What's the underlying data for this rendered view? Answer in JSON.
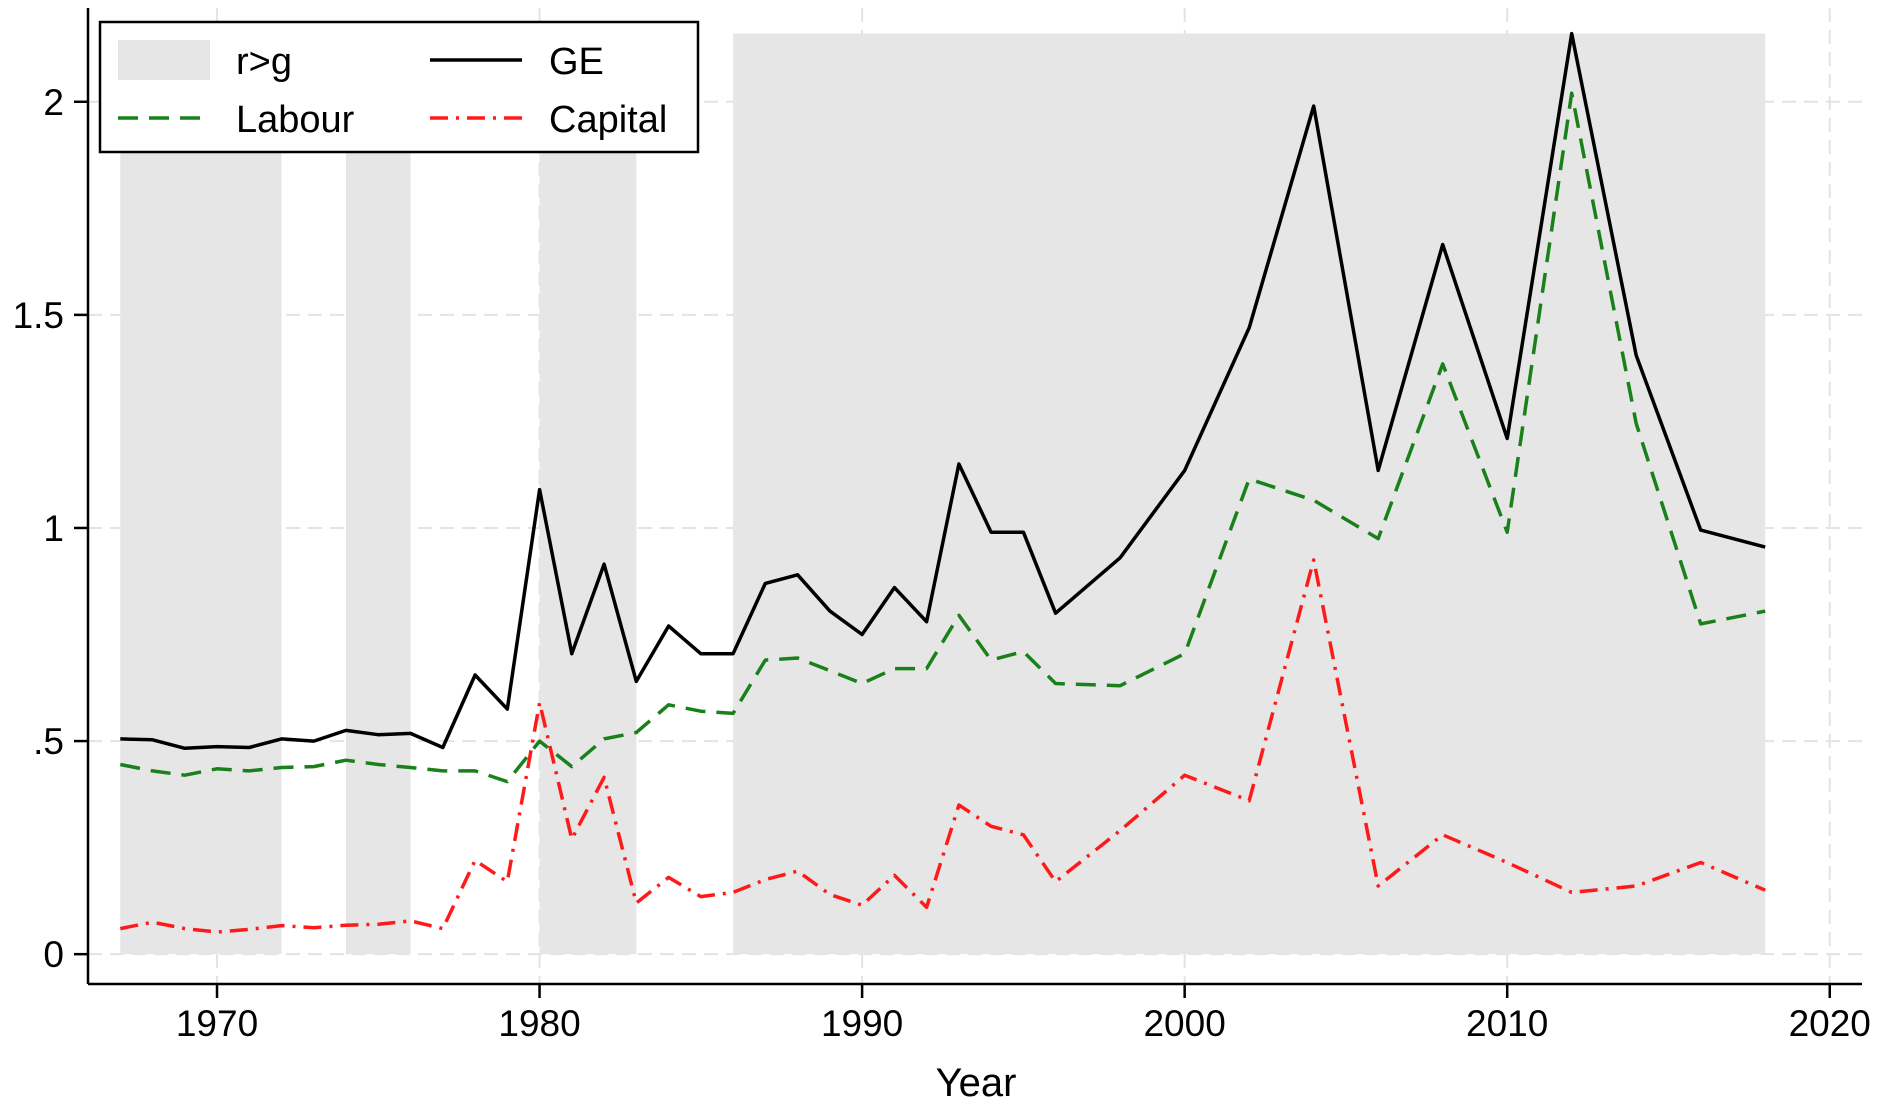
{
  "chart_data": {
    "type": "line",
    "title": "",
    "xlabel": "Year",
    "ylabel": "",
    "xlim": [
      1966,
      2021
    ],
    "ylim": [
      -0.07,
      2.22
    ],
    "xticks": [
      1970,
      1980,
      1990,
      2000,
      2010,
      2020
    ],
    "xtick_labels": [
      "1970",
      "1980",
      "1990",
      "2000",
      "2010",
      "2020"
    ],
    "yticks": [
      0,
      0.5,
      1,
      1.5,
      2
    ],
    "ytick_labels": [
      "0",
      ".5",
      "1",
      "1.5",
      "2"
    ],
    "grid": true,
    "legend_position": "top-left",
    "shaded_regions": {
      "name": "r>g",
      "color": "#e6e6e6",
      "ymax": 2.16,
      "periods": [
        [
          1967,
          1972
        ],
        [
          1974,
          1976
        ],
        [
          1980,
          1983
        ],
        [
          1986,
          2018
        ]
      ]
    },
    "legend": [
      {
        "key": "shade",
        "label": "r>g"
      },
      {
        "key": "ge",
        "label": "GE"
      },
      {
        "key": "labour",
        "label": "Labour"
      },
      {
        "key": "capital",
        "label": "Capital"
      }
    ],
    "series": [
      {
        "key": "ge",
        "name": "GE",
        "color": "#000000",
        "dash": "",
        "points": [
          [
            1967,
            0.505
          ],
          [
            1968,
            0.503
          ],
          [
            1969,
            0.483
          ],
          [
            1970,
            0.487
          ],
          [
            1971,
            0.485
          ],
          [
            1972,
            0.505
          ],
          [
            1973,
            0.5
          ],
          [
            1974,
            0.525
          ],
          [
            1975,
            0.515
          ],
          [
            1976,
            0.518
          ],
          [
            1977,
            0.485
          ],
          [
            1978,
            0.655
          ],
          [
            1979,
            0.575
          ],
          [
            1980,
            1.09
          ],
          [
            1981,
            0.705
          ],
          [
            1982,
            0.915
          ],
          [
            1983,
            0.64
          ],
          [
            1984,
            0.77
          ],
          [
            1985,
            0.705
          ],
          [
            1986,
            0.705
          ],
          [
            1987,
            0.87
          ],
          [
            1988,
            0.89
          ],
          [
            1989,
            0.805
          ],
          [
            1990,
            0.75
          ],
          [
            1991,
            0.86
          ],
          [
            1992,
            0.78
          ],
          [
            1993,
            1.15
          ],
          [
            1994,
            0.99
          ],
          [
            1995,
            0.99
          ],
          [
            1996,
            0.8
          ],
          [
            1998,
            0.93
          ],
          [
            2000,
            1.135
          ],
          [
            2002,
            1.47
          ],
          [
            2004,
            1.99
          ],
          [
            2006,
            1.135
          ],
          [
            2008,
            1.665
          ],
          [
            2010,
            1.21
          ],
          [
            2012,
            2.16
          ],
          [
            2014,
            1.405
          ],
          [
            2016,
            0.995
          ],
          [
            2018,
            0.955
          ]
        ]
      },
      {
        "key": "labour",
        "name": "Labour",
        "color": "#1a801a",
        "dash": "20,11",
        "points": [
          [
            1967,
            0.445
          ],
          [
            1968,
            0.43
          ],
          [
            1969,
            0.42
          ],
          [
            1970,
            0.435
          ],
          [
            1971,
            0.43
          ],
          [
            1972,
            0.438
          ],
          [
            1973,
            0.44
          ],
          [
            1974,
            0.455
          ],
          [
            1975,
            0.445
          ],
          [
            1976,
            0.438
          ],
          [
            1977,
            0.43
          ],
          [
            1978,
            0.43
          ],
          [
            1979,
            0.405
          ],
          [
            1980,
            0.5
          ],
          [
            1981,
            0.44
          ],
          [
            1982,
            0.505
          ],
          [
            1983,
            0.52
          ],
          [
            1984,
            0.585
          ],
          [
            1985,
            0.57
          ],
          [
            1986,
            0.565
          ],
          [
            1987,
            0.69
          ],
          [
            1988,
            0.695
          ],
          [
            1989,
            0.665
          ],
          [
            1990,
            0.635
          ],
          [
            1991,
            0.67
          ],
          [
            1992,
            0.67
          ],
          [
            1993,
            0.795
          ],
          [
            1994,
            0.69
          ],
          [
            1995,
            0.71
          ],
          [
            1996,
            0.635
          ],
          [
            1998,
            0.63
          ],
          [
            2000,
            0.705
          ],
          [
            2002,
            1.115
          ],
          [
            2004,
            1.065
          ],
          [
            2006,
            0.975
          ],
          [
            2008,
            1.385
          ],
          [
            2010,
            0.99
          ],
          [
            2012,
            2.02
          ],
          [
            2014,
            1.245
          ],
          [
            2016,
            0.775
          ],
          [
            2018,
            0.805
          ]
        ]
      },
      {
        "key": "capital",
        "name": "Capital",
        "color": "#ff1a1a",
        "dash": "18,8,3,8",
        "points": [
          [
            1967,
            0.06
          ],
          [
            1968,
            0.075
          ],
          [
            1969,
            0.06
          ],
          [
            1970,
            0.052
          ],
          [
            1971,
            0.058
          ],
          [
            1972,
            0.067
          ],
          [
            1973,
            0.062
          ],
          [
            1974,
            0.068
          ],
          [
            1975,
            0.07
          ],
          [
            1976,
            0.078
          ],
          [
            1977,
            0.06
          ],
          [
            1978,
            0.22
          ],
          [
            1979,
            0.17
          ],
          [
            1980,
            0.59
          ],
          [
            1981,
            0.27
          ],
          [
            1982,
            0.415
          ],
          [
            1983,
            0.12
          ],
          [
            1984,
            0.18
          ],
          [
            1985,
            0.135
          ],
          [
            1986,
            0.145
          ],
          [
            1987,
            0.175
          ],
          [
            1988,
            0.195
          ],
          [
            1989,
            0.14
          ],
          [
            1990,
            0.115
          ],
          [
            1991,
            0.185
          ],
          [
            1992,
            0.11
          ],
          [
            1993,
            0.35
          ],
          [
            1994,
            0.3
          ],
          [
            1995,
            0.28
          ],
          [
            1996,
            0.17
          ],
          [
            1998,
            0.29
          ],
          [
            2000,
            0.42
          ],
          [
            2002,
            0.36
          ],
          [
            2004,
            0.925
          ],
          [
            2006,
            0.16
          ],
          [
            2008,
            0.28
          ],
          [
            2010,
            0.215
          ],
          [
            2012,
            0.145
          ],
          [
            2014,
            0.16
          ],
          [
            2016,
            0.215
          ],
          [
            2018,
            0.15
          ]
        ]
      }
    ]
  }
}
